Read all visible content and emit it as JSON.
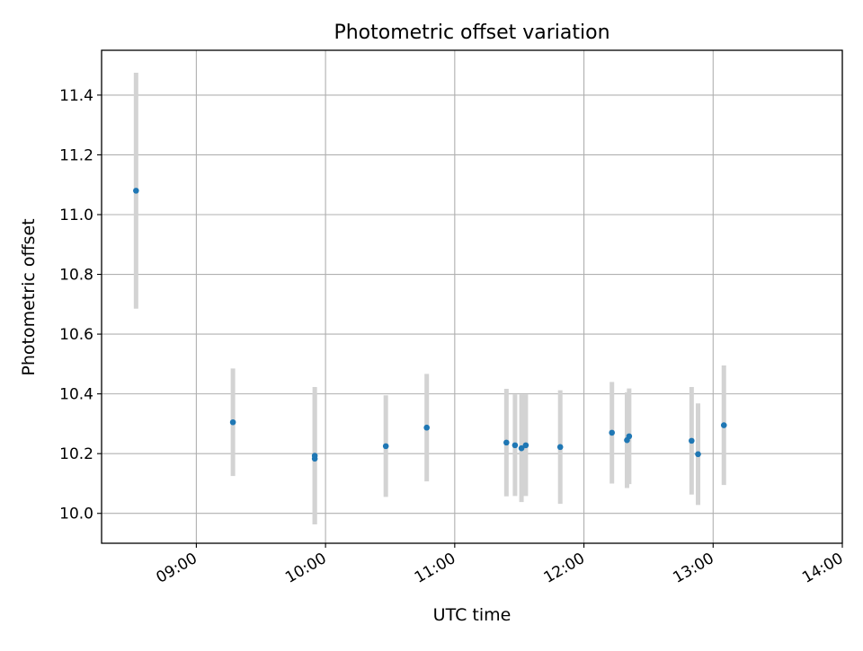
{
  "chart_data": {
    "type": "scatter",
    "title": "Photometric offset variation",
    "xlabel": "UTC time",
    "ylabel": "Photometric offset",
    "x_ticks": [
      "09:00",
      "10:00",
      "11:00",
      "12:00",
      "13:00",
      "14:00"
    ],
    "y_ticks": [
      "10.0",
      "10.2",
      "10.4",
      "10.6",
      "10.8",
      "11.0",
      "11.2",
      "11.4"
    ],
    "xlim": [
      "08:16",
      "14:00"
    ],
    "ylim": [
      9.9,
      11.55
    ],
    "grid": true,
    "colors": {
      "marker": "#1f77b4",
      "errorbar": "#d3d3d3",
      "grid": "#b0b0b0"
    },
    "series": [
      {
        "x": [
          "08:32",
          "09:17",
          "09:55",
          "09:55",
          "10:28",
          "10:47",
          "11:24",
          "11:28",
          "11:31",
          "11:33",
          "11:49",
          "12:13",
          "12:20",
          "12:21",
          "12:50",
          "12:53",
          "13:05"
        ],
        "y": [
          11.08,
          10.305,
          10.183,
          10.193,
          10.225,
          10.287,
          10.237,
          10.228,
          10.218,
          10.228,
          10.222,
          10.27,
          10.245,
          10.258,
          10.243,
          10.198,
          10.295
        ],
        "err": [
          0.395,
          0.18,
          0.22,
          0.23,
          0.17,
          0.18,
          0.18,
          0.17,
          0.18,
          0.17,
          0.19,
          0.17,
          0.16,
          0.16,
          0.18,
          0.17,
          0.2
        ]
      }
    ]
  }
}
